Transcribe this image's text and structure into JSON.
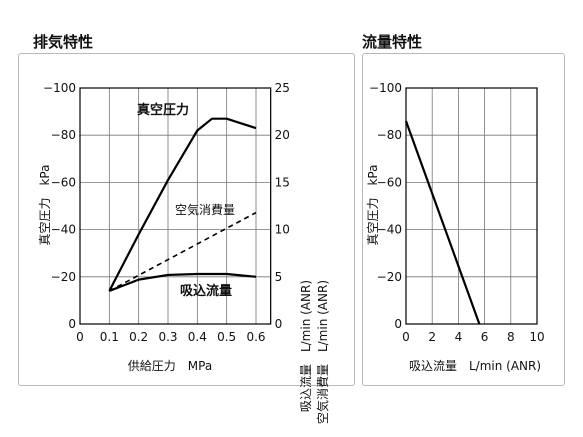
{
  "titles": {
    "left": "排気特性",
    "right": "流量特性"
  },
  "chart_data": [
    {
      "type": "line",
      "title": "排気特性",
      "xlabel": "供給圧力　MPa",
      "ylabel_left": "真空圧力　kPa",
      "ylabel_right": [
        "吸込流量",
        "空気消費量",
        "L/min (ANR)",
        "L/min (ANR)"
      ],
      "xlim": [
        0,
        0.6
      ],
      "x_ticks": [
        "0",
        "0.1",
        "0.2",
        "0.3",
        "0.4",
        "0.5",
        "0.6"
      ],
      "ylim_left": [
        0,
        -100
      ],
      "y_ticks_left": [
        "0",
        "−20",
        "−40",
        "−60",
        "−80",
        "−100"
      ],
      "ylim_right": [
        0,
        25
      ],
      "y_ticks_right": [
        "0",
        "5",
        "10",
        "15",
        "20",
        "25"
      ],
      "grid": true,
      "series": [
        {
          "name": "真空圧力",
          "axis": "left",
          "style": "solid",
          "x": [
            0.1,
            0.2,
            0.3,
            0.4,
            0.45,
            0.5,
            0.55,
            0.6
          ],
          "y": [
            -14,
            -38,
            -61,
            -82,
            -87,
            -87,
            -85,
            -83
          ]
        },
        {
          "name": "空気消費量",
          "axis": "right",
          "style": "dashed",
          "x": [
            0.1,
            0.6
          ],
          "y": [
            3.5,
            11.8
          ]
        },
        {
          "name": "吸込流量",
          "axis": "right",
          "style": "solid",
          "x": [
            0.1,
            0.2,
            0.3,
            0.4,
            0.5,
            0.6
          ],
          "y": [
            3.5,
            4.7,
            5.2,
            5.3,
            5.3,
            5.0
          ]
        }
      ]
    },
    {
      "type": "line",
      "title": "流量特性",
      "xlabel": "吸込流量　L/min (ANR)",
      "ylabel": "真空圧力　kPa",
      "xlim": [
        0,
        10
      ],
      "x_ticks": [
        "0",
        "2",
        "4",
        "6",
        "8",
        "10"
      ],
      "ylim": [
        0,
        -100
      ],
      "y_ticks": [
        "0",
        "−20",
        "−40",
        "−60",
        "−80",
        "−100"
      ],
      "grid": true,
      "series": [
        {
          "name": "真空圧力",
          "style": "solid",
          "x": [
            0,
            5.6
          ],
          "y": [
            -86,
            0
          ]
        }
      ]
    }
  ]
}
